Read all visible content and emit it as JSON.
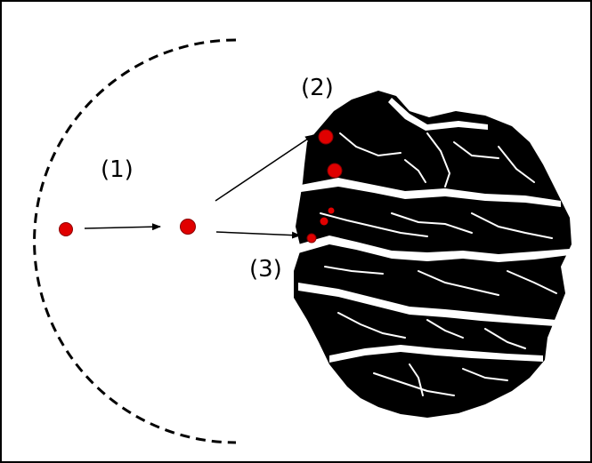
{
  "labels": {
    "step1": "(1)",
    "step2": "(2)",
    "step3": "(3)"
  },
  "colors": {
    "particle": "#e00000",
    "particle_outline": "#8a0000",
    "aggregate": "#000000",
    "crack": "#ffffff",
    "arrow": "#000000",
    "boundary": "#000000"
  },
  "icons": {
    "boundary": "dashed-semicircle",
    "particle": "red-dot",
    "aggregate": "black-cracked-disc"
  }
}
